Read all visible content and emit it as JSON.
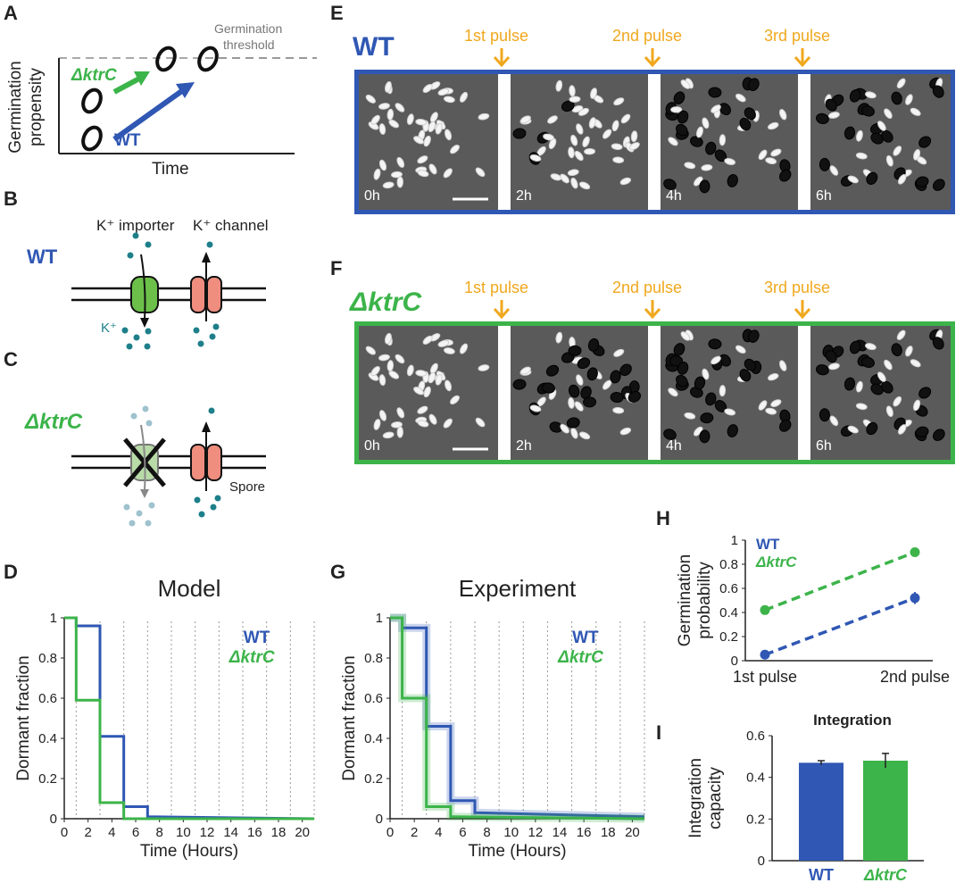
{
  "panels": {
    "A": "A",
    "B": "B",
    "C": "C",
    "D": "D",
    "E": "E",
    "F": "F",
    "G": "G",
    "H": "H",
    "I": "I"
  },
  "panelA": {
    "threshold_line1": "Germination",
    "threshold_line2": "threshold",
    "ylabel_line1": "Germination",
    "ylabel_line2": "propensity",
    "xlabel": "Time",
    "mutant": "ΔktrC",
    "wt": "WT"
  },
  "panelB": {
    "strain": "WT",
    "importer": "K⁺ importer",
    "channel": "K⁺ channel",
    "ion": "K⁺"
  },
  "panelC": {
    "strain": "ΔktrC",
    "spore": "Spore"
  },
  "panelE": {
    "strain": "WT",
    "pulses": [
      "1st pulse",
      "2nd pulse",
      "3rd pulse"
    ],
    "times": [
      "0h",
      "2h",
      "4h",
      "6h"
    ]
  },
  "panelF": {
    "strain": "ΔktrC",
    "pulses": [
      "1st pulse",
      "2nd pulse",
      "3rd pulse"
    ],
    "times": [
      "0h",
      "2h",
      "4h",
      "6h"
    ]
  },
  "colors": {
    "wt": "#2f57b3",
    "ktrC": "#3cb44a",
    "pulse": "#f0a81e"
  },
  "chart_data": [
    {
      "id": "D",
      "type": "line",
      "title": "Model",
      "xlabel": "Time (Hours)",
      "ylabel": "Dormant fraction",
      "xlim": [
        0,
        21
      ],
      "ylim": [
        0,
        1
      ],
      "xticks": [
        "0",
        "2",
        "4",
        "6",
        "8",
        "10",
        "12",
        "14",
        "16",
        "18",
        "20"
      ],
      "yticks": [
        "0",
        "0.2",
        "0.4",
        "0.6",
        "0.8",
        "1"
      ],
      "pulse_times": [
        1,
        3,
        5,
        7,
        9,
        11,
        13,
        15,
        17,
        19,
        21
      ],
      "series": [
        {
          "name": "WT",
          "x": [
            0,
            1,
            1,
            3,
            3,
            5,
            5,
            7,
            7,
            21
          ],
          "y": [
            1,
            1,
            0.96,
            0.96,
            0.41,
            0.41,
            0.06,
            0.06,
            0.01,
            0.0
          ]
        },
        {
          "name": "ΔktrC",
          "x": [
            0,
            1,
            1,
            3,
            3,
            5,
            5,
            21
          ],
          "y": [
            1,
            1,
            0.59,
            0.59,
            0.08,
            0.08,
            0.0,
            0.0
          ]
        }
      ]
    },
    {
      "id": "G",
      "type": "line",
      "title": "Experiment",
      "xlabel": "Time (Hours)",
      "ylabel": "Dormant fraction",
      "xlim": [
        0,
        21
      ],
      "ylim": [
        0,
        1
      ],
      "xticks": [
        "0",
        "2",
        "4",
        "6",
        "8",
        "10",
        "12",
        "14",
        "16",
        "18",
        "20"
      ],
      "yticks": [
        "0",
        "0.2",
        "0.4",
        "0.6",
        "0.8",
        "1"
      ],
      "pulse_times": [
        1,
        3,
        5,
        7,
        9,
        11,
        13,
        15,
        17,
        19,
        21
      ],
      "series": [
        {
          "name": "WT",
          "x": [
            0,
            1,
            1,
            3,
            3,
            5,
            5,
            7,
            7,
            21
          ],
          "y": [
            1,
            1,
            0.95,
            0.95,
            0.46,
            0.46,
            0.09,
            0.09,
            0.03,
            0.01
          ]
        },
        {
          "name": "ΔktrC",
          "x": [
            0,
            1,
            1,
            3,
            3,
            5,
            5,
            21
          ],
          "y": [
            1,
            1,
            0.6,
            0.6,
            0.06,
            0.06,
            0.01,
            0.0
          ]
        }
      ]
    },
    {
      "id": "H",
      "type": "scatter",
      "ylabel": "Germination probability",
      "categories": [
        "1st pulse",
        "2nd pulse"
      ],
      "ylim": [
        0,
        1
      ],
      "yticks": [
        "0",
        "0.2",
        "0.4",
        "0.6",
        "0.8",
        "1"
      ],
      "series": [
        {
          "name": "WT",
          "values": [
            0.05,
            0.52
          ],
          "err": [
            0.01,
            0.05
          ]
        },
        {
          "name": "ΔktrC",
          "values": [
            0.42,
            0.9
          ],
          "err": [
            0.03,
            0.01
          ]
        }
      ]
    },
    {
      "id": "I",
      "type": "bar",
      "title": "Integration",
      "ylabel": "Integration capacity",
      "categories": [
        "WT",
        "ΔktrC"
      ],
      "values": [
        0.47,
        0.48
      ],
      "err": [
        0.01,
        0.035
      ],
      "ylim": [
        0,
        0.6
      ],
      "yticks": [
        "0",
        "0.2",
        "0.4",
        "0.6"
      ]
    }
  ]
}
